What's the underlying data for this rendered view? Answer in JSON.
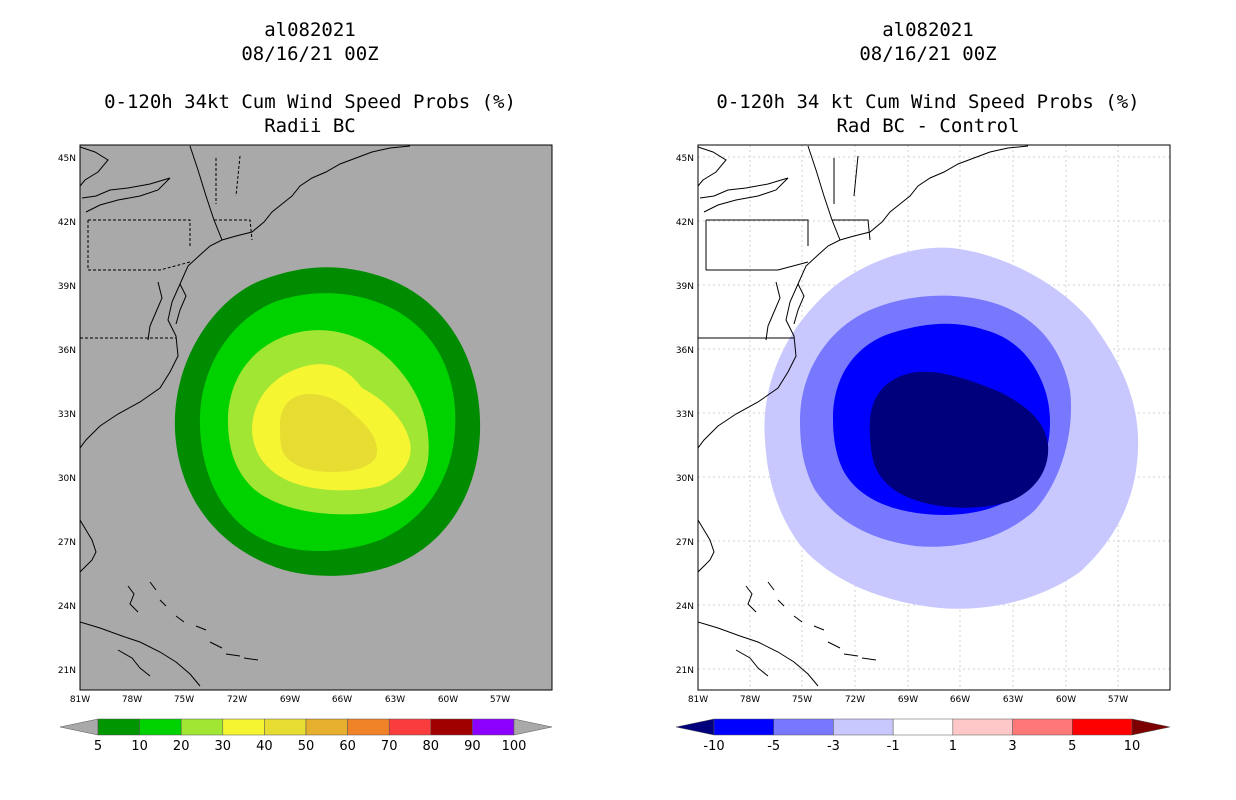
{
  "left_panel": {
    "storm_id": "al082021",
    "datetime": "08/16/21 00Z",
    "title": "0-120h 34kt Cum Wind Speed Probs (%)",
    "subtitle": "Radii BC",
    "background": "#a9a9a9",
    "contours": [
      {
        "level": "5",
        "color": "#008c00"
      },
      {
        "level": "10",
        "color": "#00d200"
      },
      {
        "level": "20",
        "color": "#a0e632"
      },
      {
        "level": "30",
        "color": "#f5f532"
      },
      {
        "level": "40",
        "color": "#e6dc32"
      }
    ],
    "colorbar": {
      "colors": [
        "#009600",
        "#00d200",
        "#a0e632",
        "#f5f532",
        "#e6dc32",
        "#e6af2d",
        "#f08228",
        "#fa3c3c",
        "#a00000",
        "#8c00ff"
      ],
      "under_color": "#a9a9a9",
      "over_color": "#a9a9a9",
      "labels": [
        "5",
        "10",
        "20",
        "30",
        "40",
        "50",
        "60",
        "70",
        "80",
        "90",
        "100"
      ]
    }
  },
  "right_panel": {
    "storm_id": "al082021",
    "datetime": "08/16/21 00Z",
    "title": "0-120h 34 kt Cum Wind Speed Probs (%)",
    "subtitle": "Rad BC - Control",
    "background": "#ffffff",
    "contours": [
      {
        "level": "-1",
        "color": "#c8c8ff"
      },
      {
        "level": "-3",
        "color": "#7878ff"
      },
      {
        "level": "-5",
        "color": "#0000ff"
      },
      {
        "level": "-10",
        "color": "#00007d"
      }
    ],
    "colorbar": {
      "colors": [
        "#0000ff",
        "#7878ff",
        "#c8c8ff",
        "#ffffff",
        "#ffc8c8",
        "#ff7878",
        "#ff0000"
      ],
      "under_color": "#00007d",
      "over_color": "#7d0000",
      "labels": [
        "-10",
        "-5",
        "-3",
        "-1",
        "1",
        "3",
        "5",
        "10"
      ]
    }
  },
  "axes": {
    "lat_labels": [
      "45N",
      "42N",
      "39N",
      "36N",
      "33N",
      "30N",
      "27N",
      "24N",
      "21N"
    ],
    "lon_labels": [
      "81W",
      "78W",
      "75W",
      "72W",
      "69W",
      "66W",
      "63W",
      "60W",
      "57W"
    ]
  }
}
